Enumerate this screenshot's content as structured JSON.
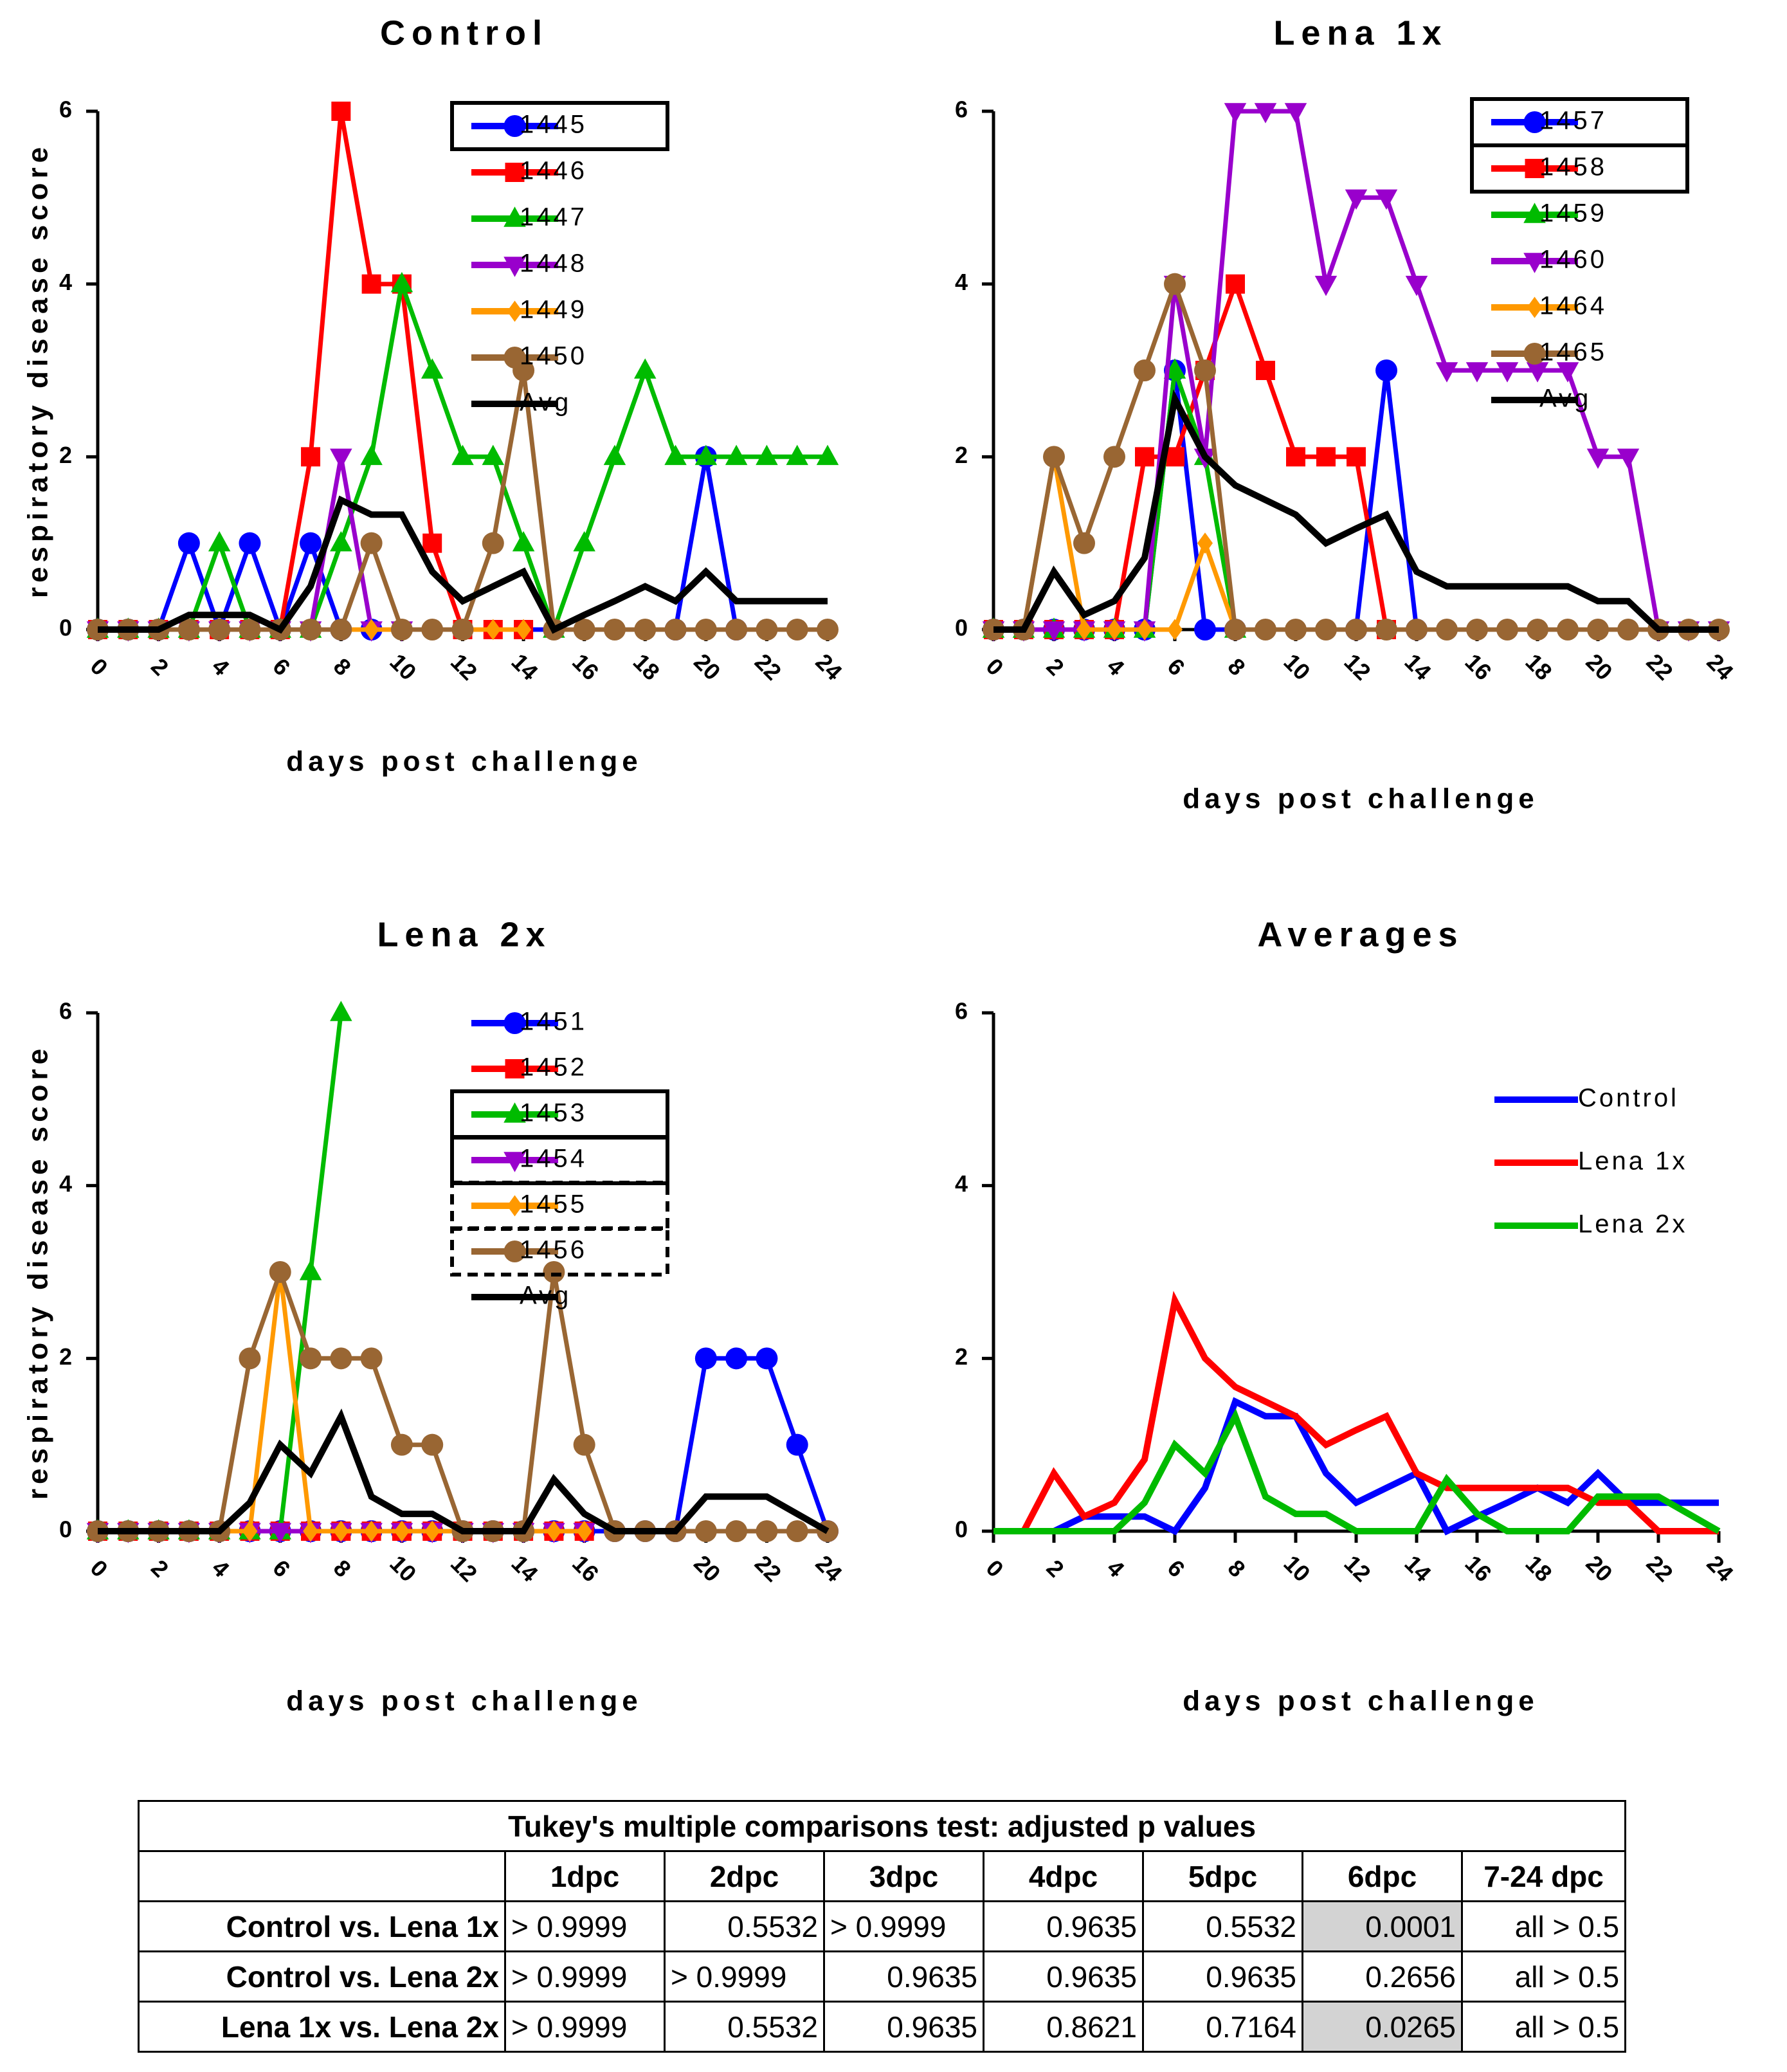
{
  "chart_data": [
    {
      "type": "line",
      "title": "Control",
      "xlabel": "days post challenge",
      "ylabel": "respiratory disease score",
      "xlim": [
        0,
        24
      ],
      "ylim": [
        0,
        6
      ],
      "x_ticks": [
        0,
        2,
        4,
        6,
        8,
        10,
        12,
        14,
        16,
        18,
        20,
        22,
        24
      ],
      "y_ticks": [
        0,
        2,
        4,
        6
      ],
      "x": [
        0,
        1,
        2,
        3,
        4,
        5,
        6,
        7,
        8,
        9,
        10,
        11,
        12,
        13,
        14,
        15,
        16,
        17,
        18,
        19,
        20,
        21,
        22,
        23,
        24
      ],
      "series": [
        {
          "name": "1445",
          "color": "#0000ff",
          "marker": "circle",
          "boxed": "solid",
          "values": [
            0,
            0,
            0,
            1,
            0,
            1,
            0,
            1,
            0,
            0,
            null,
            null,
            null,
            null,
            null,
            null,
            null,
            null,
            null,
            0,
            2,
            0,
            null,
            null,
            null
          ]
        },
        {
          "name": "1446",
          "color": "#ff0000",
          "marker": "square",
          "boxed": "",
          "values": [
            0,
            0,
            0,
            0,
            0,
            0,
            0,
            2,
            6,
            4,
            4,
            1,
            0,
            0,
            0,
            null,
            null,
            null,
            null,
            null,
            null,
            null,
            null,
            null,
            null
          ]
        },
        {
          "name": "1447",
          "color": "#00bb00",
          "marker": "triangle-up",
          "boxed": "",
          "values": [
            0,
            0,
            0,
            0,
            1,
            0,
            0,
            0,
            1,
            2,
            4,
            3,
            2,
            2,
            1,
            0,
            1,
            2,
            3,
            2,
            2,
            2,
            2,
            2,
            2
          ]
        },
        {
          "name": "1448",
          "color": "#9900cc",
          "marker": "triangle-down",
          "boxed": "",
          "values": [
            0,
            0,
            0,
            0,
            0,
            0,
            0,
            0,
            2,
            0,
            0,
            null,
            null,
            null,
            null,
            null,
            null,
            null,
            null,
            null,
            null,
            null,
            null,
            null,
            null
          ]
        },
        {
          "name": "1449",
          "color": "#ff9900",
          "marker": "diamond",
          "boxed": "",
          "values": [
            0,
            0,
            0,
            0,
            0,
            0,
            0,
            0,
            0,
            0,
            0,
            0,
            0,
            0,
            0,
            null,
            null,
            null,
            null,
            null,
            null,
            null,
            null,
            null,
            null
          ]
        },
        {
          "name": "1450",
          "color": "#996633",
          "marker": "circle",
          "boxed": "",
          "values": [
            0,
            0,
            0,
            0,
            0,
            0,
            0,
            0,
            0,
            1,
            0,
            0,
            0,
            1,
            3,
            0,
            0,
            0,
            0,
            0,
            0,
            0,
            0,
            0,
            0
          ]
        },
        {
          "name": "Avg",
          "color": "#000000",
          "marker": "none",
          "boxed": "",
          "values": [
            0,
            0,
            0,
            0.17,
            0.17,
            0.17,
            0,
            0.5,
            1.5,
            1.33,
            1.33,
            0.67,
            0.33,
            0.5,
            0.67,
            0,
            0.17,
            0.33,
            0.5,
            0.33,
            0.67,
            0.33,
            0.33,
            0.33,
            0.33
          ]
        }
      ]
    },
    {
      "type": "line",
      "title": "Lena 1x",
      "xlabel": "days post challenge",
      "ylabel": "",
      "xlim": [
        0,
        24
      ],
      "ylim": [
        0,
        6
      ],
      "x_ticks": [
        0,
        2,
        4,
        6,
        8,
        10,
        12,
        14,
        16,
        18,
        20,
        22,
        24
      ],
      "y_ticks": [
        0,
        2,
        4,
        6
      ],
      "x": [
        0,
        1,
        2,
        3,
        4,
        5,
        6,
        7,
        8,
        9,
        10,
        11,
        12,
        13,
        14,
        15,
        16,
        17,
        18,
        19,
        20,
        21,
        22,
        23,
        24
      ],
      "series": [
        {
          "name": "1457",
          "color": "#0000ff",
          "marker": "circle",
          "boxed": "solid",
          "values": [
            0,
            0,
            0,
            0,
            0,
            0,
            3,
            0,
            0,
            null,
            null,
            null,
            0,
            3,
            0,
            null,
            null,
            null,
            null,
            null,
            null,
            null,
            null,
            null,
            null
          ]
        },
        {
          "name": "1458",
          "color": "#ff0000",
          "marker": "square",
          "boxed": "solid",
          "values": [
            0,
            0,
            0,
            0,
            0,
            2,
            2,
            3,
            4,
            3,
            2,
            2,
            2,
            0,
            null,
            null,
            null,
            null,
            null,
            null,
            null,
            null,
            null,
            null,
            null
          ]
        },
        {
          "name": "1459",
          "color": "#00bb00",
          "marker": "triangle-up",
          "boxed": "",
          "values": [
            0,
            0,
            0,
            0,
            0,
            0,
            3,
            2,
            0,
            null,
            null,
            null,
            null,
            null,
            null,
            null,
            null,
            null,
            null,
            null,
            null,
            null,
            null,
            null,
            null
          ]
        },
        {
          "name": "1460",
          "color": "#9900cc",
          "marker": "triangle-down",
          "boxed": "",
          "values": [
            0,
            0,
            0,
            0,
            0,
            0,
            4,
            2,
            6,
            6,
            6,
            4,
            5,
            5,
            4,
            3,
            3,
            3,
            3,
            3,
            2,
            2,
            0,
            0,
            0
          ]
        },
        {
          "name": "1464",
          "color": "#ff9900",
          "marker": "diamond",
          "boxed": "",
          "values": [
            0,
            0,
            2,
            0,
            0,
            0,
            0,
            1,
            0,
            null,
            null,
            null,
            null,
            null,
            null,
            null,
            null,
            null,
            null,
            null,
            null,
            null,
            null,
            null,
            null
          ]
        },
        {
          "name": "1465",
          "color": "#996633",
          "marker": "circle",
          "boxed": "",
          "values": [
            0,
            0,
            2,
            1,
            2,
            3,
            4,
            3,
            0,
            0,
            0,
            0,
            0,
            0,
            0,
            0,
            0,
            0,
            0,
            0,
            0,
            0,
            0,
            0,
            0
          ]
        },
        {
          "name": "Avg",
          "color": "#000000",
          "marker": "none",
          "boxed": "",
          "values": [
            0,
            0,
            0.67,
            0.17,
            0.33,
            0.83,
            2.67,
            2,
            1.67,
            1.5,
            1.33,
            1,
            1.17,
            1.33,
            0.67,
            0.5,
            0.5,
            0.5,
            0.5,
            0.5,
            0.33,
            0.33,
            0,
            0,
            0
          ]
        }
      ]
    },
    {
      "type": "line",
      "title": "Lena 2x",
      "xlabel": "days post challenge",
      "ylabel": "respiratory disease score",
      "xlim": [
        0,
        24
      ],
      "ylim": [
        0,
        6
      ],
      "x_ticks": [
        0,
        2,
        4,
        6,
        8,
        10,
        12,
        14,
        16,
        20,
        22,
        24
      ],
      "y_ticks": [
        0,
        2,
        4,
        6
      ],
      "x": [
        0,
        1,
        2,
        3,
        4,
        5,
        6,
        7,
        8,
        9,
        10,
        11,
        12,
        13,
        14,
        15,
        16,
        17,
        18,
        19,
        20,
        21,
        22,
        23,
        24
      ],
      "series": [
        {
          "name": "1451",
          "color": "#0000ff",
          "marker": "circle",
          "boxed": "",
          "values": [
            0,
            0,
            0,
            0,
            0,
            0,
            0,
            0,
            0,
            0,
            0,
            0,
            0,
            0,
            0,
            0,
            0,
            0,
            0,
            0,
            2,
            2,
            2,
            1,
            0
          ]
        },
        {
          "name": "1452",
          "color": "#ff0000",
          "marker": "square",
          "boxed": "",
          "values": [
            0,
            0,
            0,
            0,
            0,
            0,
            0,
            0,
            0,
            0,
            0,
            0,
            0,
            0,
            0,
            0,
            0,
            null,
            null,
            null,
            null,
            null,
            null,
            null,
            null
          ]
        },
        {
          "name": "1453",
          "color": "#00bb00",
          "marker": "triangle-up",
          "boxed": "solid",
          "values": [
            0,
            0,
            0,
            0,
            0,
            0,
            0,
            3,
            6,
            null,
            null,
            null,
            null,
            null,
            null,
            null,
            null,
            null,
            null,
            null,
            null,
            null,
            null,
            null,
            null
          ]
        },
        {
          "name": "1454",
          "color": "#9900cc",
          "marker": "triangle-down",
          "boxed": "solid",
          "values": [
            0,
            0,
            0,
            0,
            0,
            0,
            0,
            0,
            0,
            0,
            0,
            0,
            0,
            0,
            0,
            0,
            0,
            null,
            null,
            null,
            null,
            null,
            null,
            null,
            null
          ]
        },
        {
          "name": "1455",
          "color": "#ff9900",
          "marker": "diamond",
          "boxed": "dashed",
          "values": [
            0,
            0,
            0,
            0,
            0,
            0,
            3,
            0,
            0,
            0,
            0,
            0,
            0,
            0,
            0,
            0,
            0,
            null,
            null,
            null,
            null,
            null,
            null,
            null,
            null
          ]
        },
        {
          "name": "1456",
          "color": "#996633",
          "marker": "circle",
          "boxed": "dashed",
          "values": [
            0,
            0,
            0,
            0,
            0,
            2,
            3,
            2,
            2,
            2,
            1,
            1,
            0,
            0,
            0,
            3,
            1,
            0,
            0,
            0,
            0,
            0,
            0,
            0,
            0
          ]
        },
        {
          "name": "Avg",
          "color": "#000000",
          "marker": "none",
          "boxed": "",
          "values": [
            0,
            0,
            0,
            0,
            0,
            0.33,
            1,
            0.67,
            1.33,
            0.4,
            0.2,
            0.2,
            0,
            0,
            0,
            0.6,
            0.2,
            0,
            0,
            0,
            0.4,
            0.4,
            0.4,
            0.2,
            0
          ]
        }
      ]
    },
    {
      "type": "line",
      "title": "Averages",
      "xlabel": "days post challenge",
      "ylabel": "",
      "xlim": [
        0,
        24
      ],
      "ylim": [
        0,
        6
      ],
      "x_ticks": [
        0,
        2,
        4,
        6,
        8,
        10,
        12,
        14,
        16,
        18,
        20,
        22,
        24
      ],
      "y_ticks": [
        0,
        2,
        4,
        6
      ],
      "x": [
        0,
        1,
        2,
        3,
        4,
        5,
        6,
        7,
        8,
        9,
        10,
        11,
        12,
        13,
        14,
        15,
        16,
        17,
        18,
        19,
        20,
        21,
        22,
        23,
        24
      ],
      "series": [
        {
          "name": "Control",
          "color": "#0000ff",
          "marker": "none",
          "boxed": "",
          "values": [
            0,
            0,
            0,
            0.17,
            0.17,
            0.17,
            0,
            0.5,
            1.5,
            1.33,
            1.33,
            0.67,
            0.33,
            0.5,
            0.67,
            0,
            0.17,
            0.33,
            0.5,
            0.33,
            0.67,
            0.33,
            0.33,
            0.33,
            0.33
          ]
        },
        {
          "name": "Lena 1x",
          "color": "#ff0000",
          "marker": "none",
          "boxed": "",
          "values": [
            0,
            0,
            0.67,
            0.17,
            0.33,
            0.83,
            2.67,
            2,
            1.67,
            1.5,
            1.33,
            1,
            1.17,
            1.33,
            0.67,
            0.5,
            0.5,
            0.5,
            0.5,
            0.5,
            0.33,
            0.33,
            0,
            0,
            0
          ]
        },
        {
          "name": "Lena 2x",
          "color": "#00bb00",
          "marker": "none",
          "boxed": "",
          "values": [
            0,
            0,
            0,
            0,
            0,
            0.33,
            1,
            0.67,
            1.33,
            0.4,
            0.2,
            0.2,
            0,
            0,
            0,
            0.6,
            0.2,
            0,
            0,
            0,
            0.4,
            0.4,
            0.4,
            0.2,
            0
          ]
        }
      ]
    },
    {
      "type": "table",
      "title": "Tukey's multiple comparisons test: adjusted p values",
      "columns": [
        "",
        "1dpc",
        "2dpc",
        "3dpc",
        "4dpc",
        "5dpc",
        "6dpc",
        "7-24 dpc"
      ],
      "rows": [
        {
          "label": "Control vs. Lena 1x",
          "values": [
            "> 0.9999",
            "0.5532",
            "> 0.9999",
            "0.9635",
            "0.5532",
            "0.0001",
            "all > 0.5"
          ],
          "highlight": [
            false,
            false,
            false,
            false,
            false,
            true,
            false
          ]
        },
        {
          "label": "Control vs. Lena 2x",
          "values": [
            "> 0.9999",
            "> 0.9999",
            "0.9635",
            "0.9635",
            "0.9635",
            "0.2656",
            "all > 0.5"
          ],
          "highlight": [
            false,
            false,
            false,
            false,
            false,
            false,
            false
          ]
        },
        {
          "label": "Lena 1x vs. Lena 2x",
          "values": [
            "> 0.9999",
            "0.5532",
            "0.9635",
            "0.8621",
            "0.7164",
            "0.0265",
            "all > 0.5"
          ],
          "highlight": [
            false,
            false,
            false,
            false,
            false,
            true,
            false
          ]
        }
      ]
    }
  ]
}
